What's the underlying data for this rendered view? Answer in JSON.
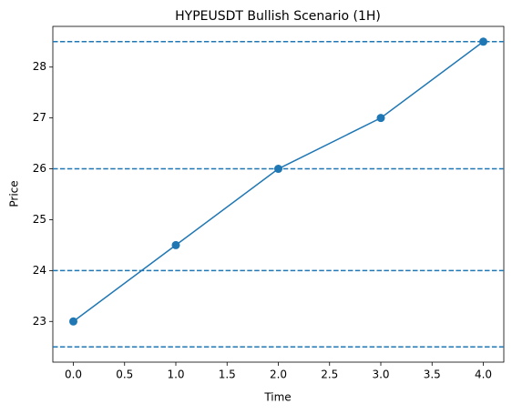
{
  "chart_data": {
    "type": "line",
    "title": "HYPEUSDT Bullish Scenario (1H)",
    "x_label": "Time",
    "y_label": "Price",
    "x": [
      0,
      1,
      2,
      3,
      4
    ],
    "series": [
      {
        "color": "#1f77b4",
        "values": [
          23,
          24.5,
          26,
          27,
          28.5
        ]
      }
    ],
    "hlines": [
      22.5,
      24,
      26,
      28.5
    ],
    "hline_color": "#1f77b4",
    "hline_style": "dashed",
    "markers": true,
    "xlim": [
      -0.2,
      4.2
    ],
    "xticks": [
      {
        "value": 0,
        "label": "0.0"
      },
      0.5,
      {
        "value": 1,
        "label": "1.0"
      },
      1.5,
      {
        "value": 2,
        "label": "2.0"
      },
      2.5,
      {
        "value": 3,
        "label": "3.0"
      },
      3.5,
      {
        "value": 4,
        "label": "4.0"
      }
    ],
    "ylim": [
      22.2,
      28.8
    ],
    "yticks": [
      23,
      24,
      25,
      26,
      27,
      28
    ]
  }
}
